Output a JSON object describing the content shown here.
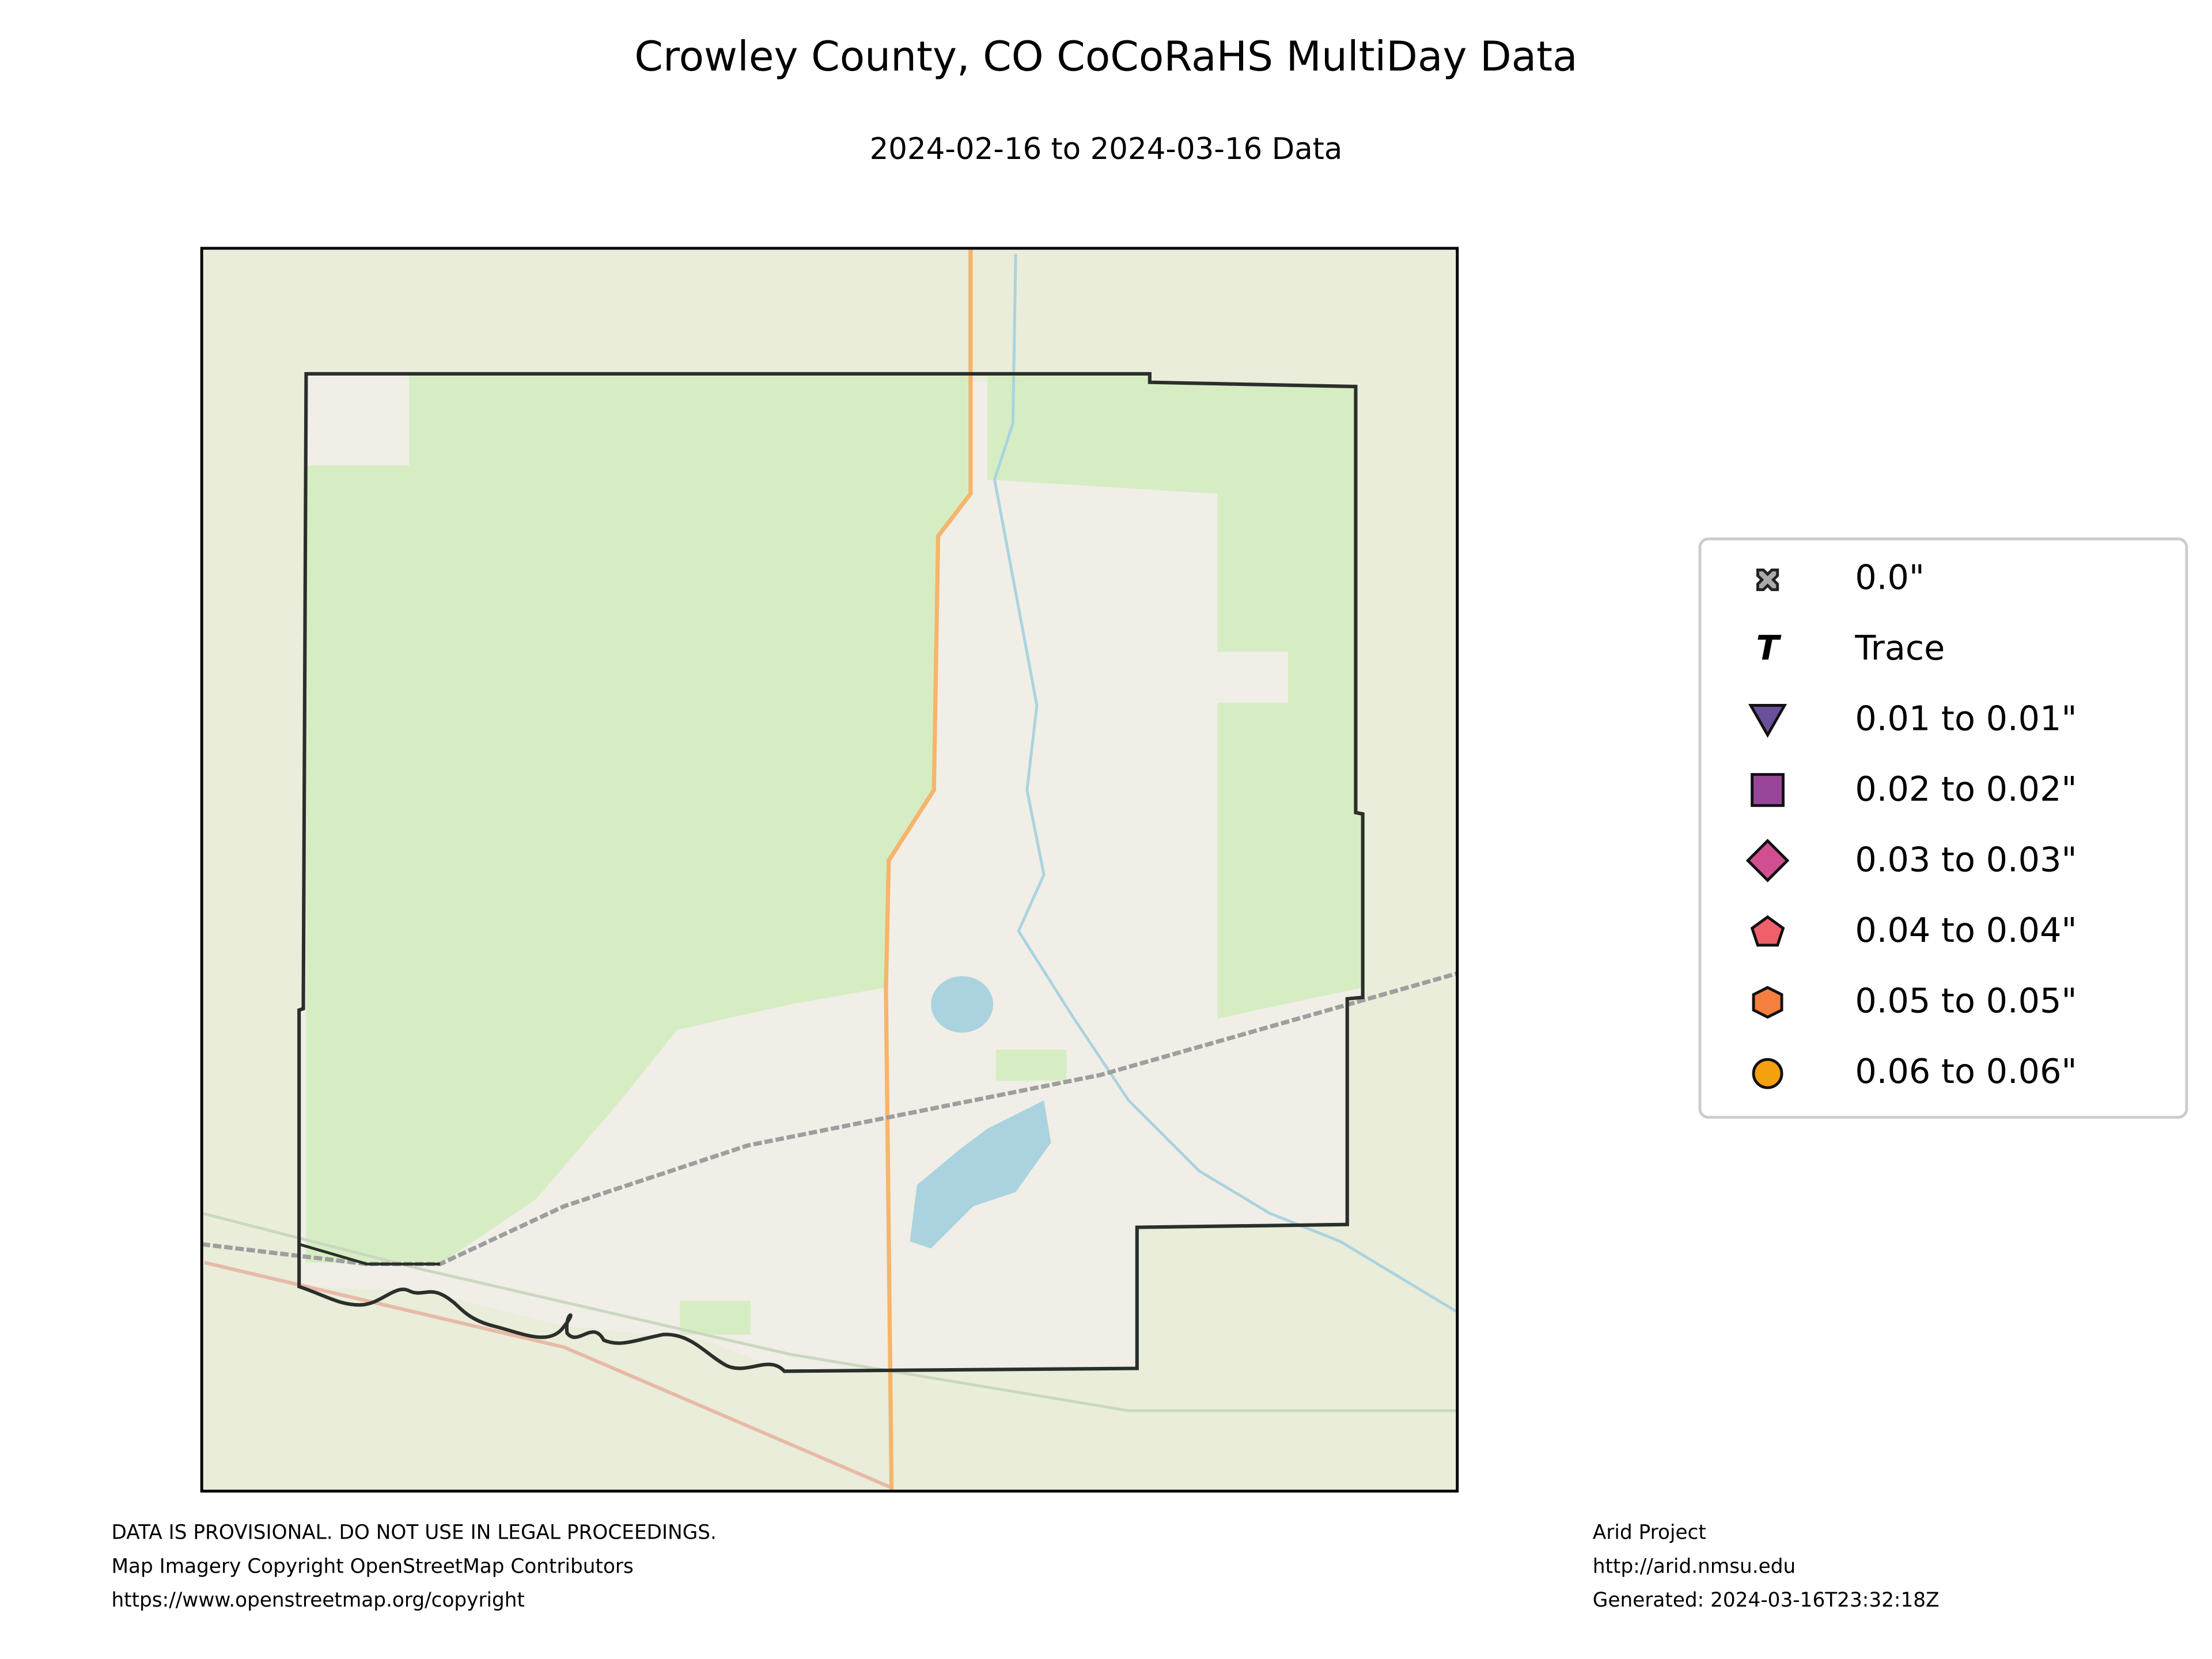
{
  "title": "Crowley County, CO CoCoRaHS MultiDay Data",
  "subtitle": "2024-02-16 to 2024-03-16 Data",
  "legend": {
    "items": [
      {
        "label": "0.0\""
      },
      {
        "label": "Trace"
      },
      {
        "label": "0.01 to 0.01\""
      },
      {
        "label": "0.02 to 0.02\""
      },
      {
        "label": "0.03 to 0.03\""
      },
      {
        "label": "0.04 to 0.04\""
      },
      {
        "label": "0.05 to 0.05\""
      },
      {
        "label": "0.06 to 0.06\""
      }
    ]
  },
  "footer": {
    "left": [
      "DATA IS PROVISIONAL. DO NOT USE IN LEGAL PROCEEDINGS.",
      "Map Imagery Copyright OpenStreetMap Contributors",
      "https://www.openstreetmap.org/copyright"
    ],
    "right": [
      "Arid Project",
      "http://arid.nmsu.edu",
      "Generated: 2024-03-16T23:32:18Z"
    ]
  }
}
